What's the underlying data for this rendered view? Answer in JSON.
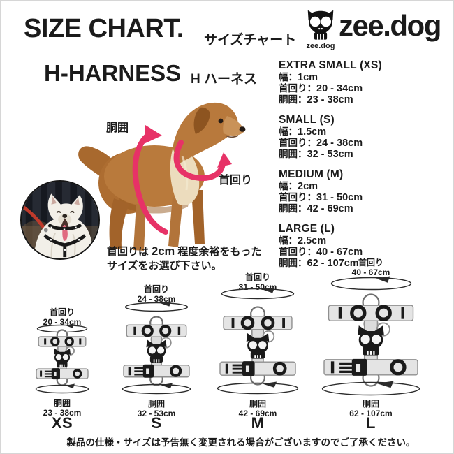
{
  "header": {
    "title": "SIZE CHART.",
    "subtitle_jp": "サイズチャート",
    "brand_wordmark": "zee.dog",
    "brand_caption": "zee.dog"
  },
  "product": {
    "name": "H-HARNESS",
    "name_jp": "H ハーネス"
  },
  "labels": {
    "girth": "胴囲",
    "neck": "首回り"
  },
  "advice_note": {
    "line1_pre": "首回りは ",
    "line1_bold": "2cm",
    "line1_post": " 程度余裕をもった",
    "line2": "サイズをお選び下さい。"
  },
  "sizes": [
    {
      "heading": "EXTRA SMALL (XS)",
      "code": "XS",
      "width": {
        "label": "幅：",
        "value": "1cm"
      },
      "neck": {
        "label": "首回り：",
        "value": "20 - 34cm"
      },
      "girth": {
        "label": "胴囲：",
        "value": "23 - 38cm"
      }
    },
    {
      "heading": "SMALL (S)",
      "code": "S",
      "width": {
        "label": "幅：",
        "value": "1.5cm"
      },
      "neck": {
        "label": "首回り：",
        "value": "24 - 38cm"
      },
      "girth": {
        "label": "胴囲：",
        "value": "32 - 53cm"
      }
    },
    {
      "heading": "MEDIUM (M)",
      "code": "M",
      "width": {
        "label": "幅：",
        "value": "2cm"
      },
      "neck": {
        "label": "首回り：",
        "value": "31 - 50cm"
      },
      "girth": {
        "label": "胴囲：",
        "value": "42 - 69cm"
      }
    },
    {
      "heading": "LARGE (L)",
      "code": "L",
      "width": {
        "label": "幅：",
        "value": "2.5cm"
      },
      "neck": {
        "label": "首回り：",
        "value": "40 - 67cm"
      },
      "girth": {
        "label": "胴囲：",
        "value": "62 - 107cm"
      }
    }
  ],
  "footer_note": "製品の仕様・サイズは予告無く変更される場合がございますのでご了承ください。",
  "colors": {
    "accent_pink": "#e73267",
    "strap_gray": "#e4e4e4",
    "text": "#1b1b1b"
  }
}
